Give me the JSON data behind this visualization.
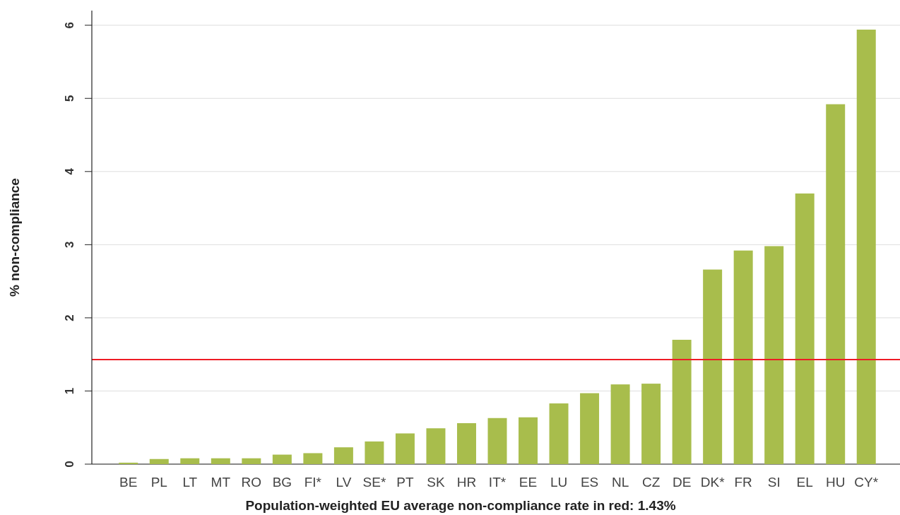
{
  "chart_data": {
    "type": "bar",
    "xlabel": "Population-weighted EU average non-compliance rate in red: 1.43%",
    "ylabel": "% non-compliance",
    "categories": [
      "BE",
      "PL",
      "LT",
      "MT",
      "RO",
      "BG",
      "FI*",
      "LV",
      "SE*",
      "PT",
      "SK",
      "HR",
      "IT*",
      "EE",
      "LU",
      "ES",
      "NL",
      "CZ",
      "DE",
      "DK*",
      "FR",
      "SI",
      "EL",
      "HU",
      "CY*"
    ],
    "values": [
      0.02,
      0.07,
      0.08,
      0.08,
      0.08,
      0.13,
      0.15,
      0.23,
      0.31,
      0.42,
      0.49,
      0.56,
      0.63,
      0.64,
      0.83,
      0.97,
      1.09,
      1.1,
      1.7,
      2.66,
      2.92,
      2.98,
      3.7,
      4.92,
      5.94
    ],
    "color": "#a8bd4c",
    "ylim": [
      0,
      6.2
    ],
    "yticks": [
      0,
      1,
      2,
      3,
      4,
      5,
      6
    ],
    "grid": "y",
    "ref_lines": [
      {
        "axis": "y",
        "value": 1.43,
        "color": "#ee1c25"
      }
    ]
  }
}
